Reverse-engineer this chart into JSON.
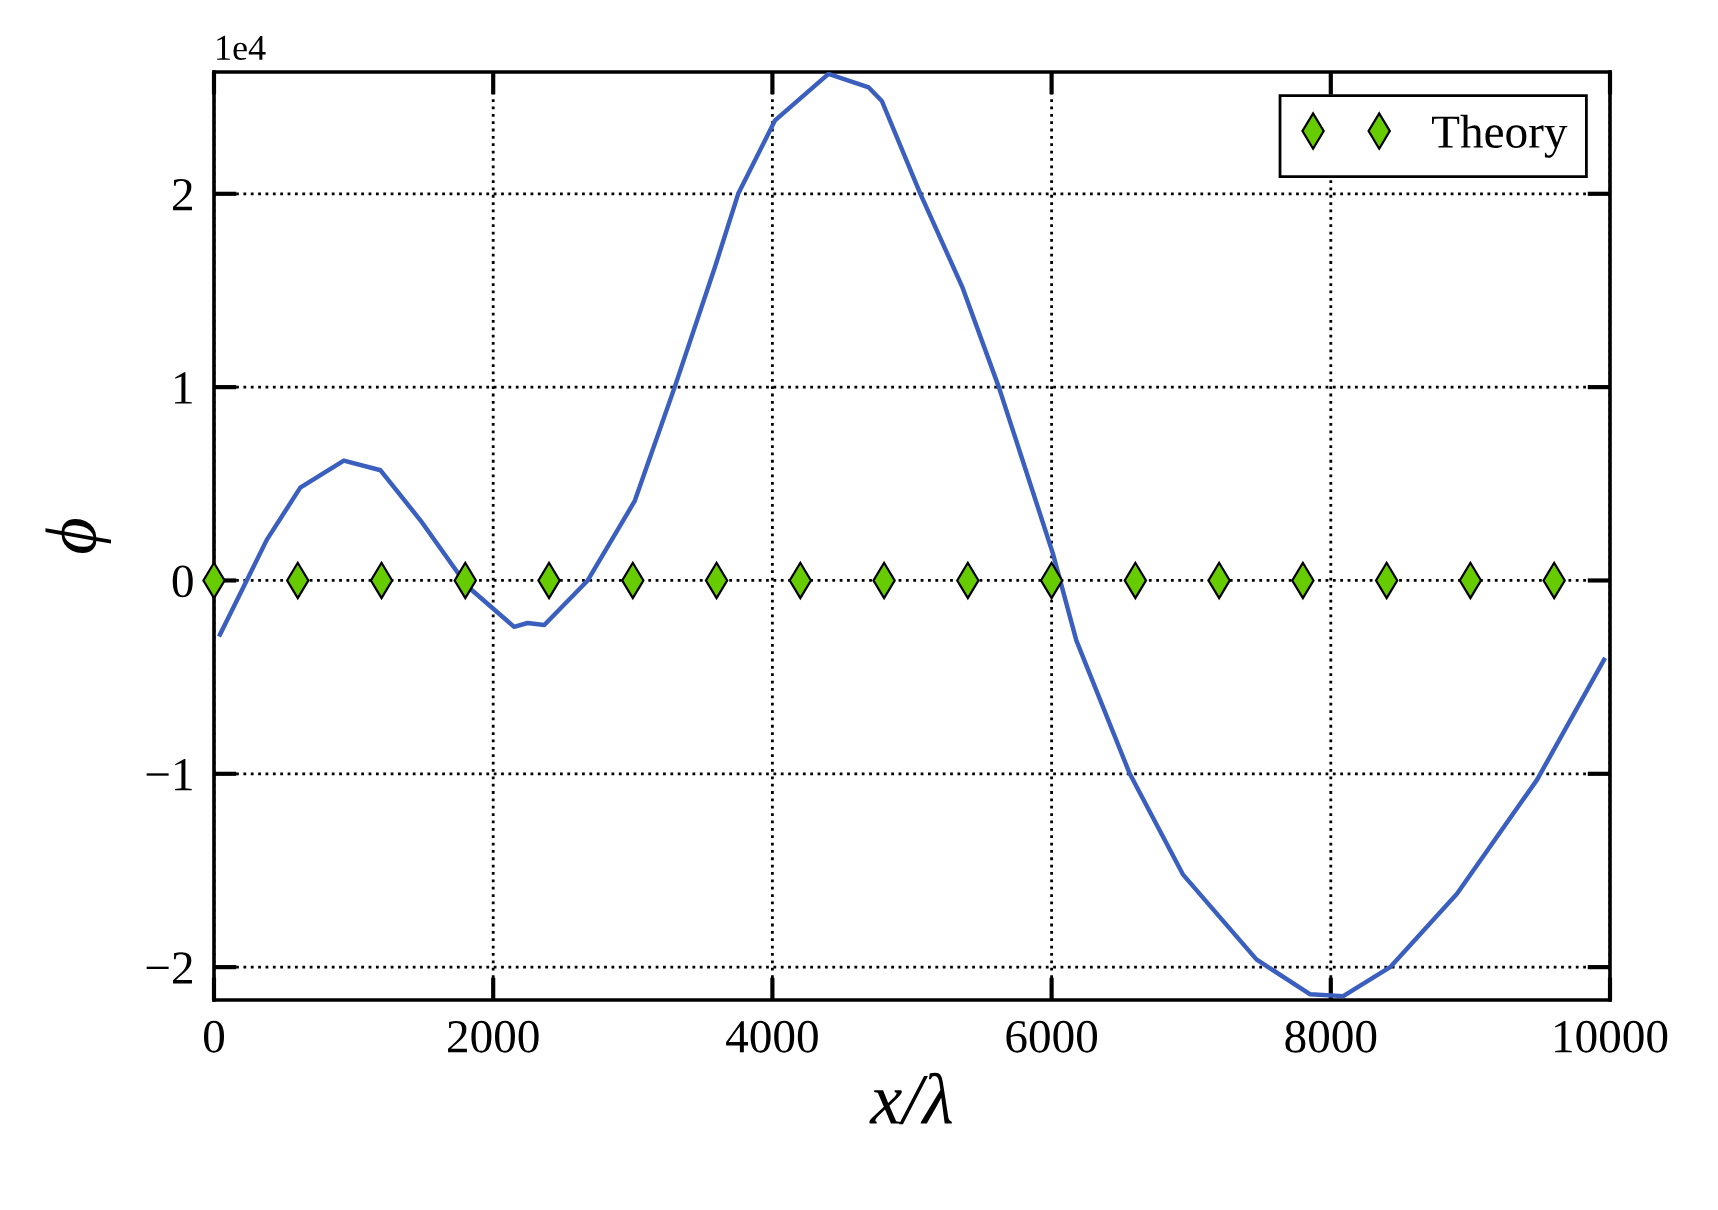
{
  "chart_data": {
    "type": "line",
    "xlabel": "x/λ",
    "ylabel": "ϕ",
    "annotations": [
      "1e4"
    ],
    "xlim": [
      0,
      10000
    ],
    "xticks": [
      0,
      2000,
      4000,
      6000,
      8000,
      10000
    ],
    "ylim": [
      -2.17,
      2.63
    ],
    "yticks": [
      -2,
      -1,
      0,
      1,
      2
    ],
    "grid": true,
    "legend": "top right",
    "series": [
      {
        "color": "#3a5fbf",
        "marker": "none",
        "line_style": "solid",
        "x": [
          43,
          378,
          618,
          930,
          1193,
          1480,
          1815,
          2150,
          2246,
          2366,
          2677,
          3013,
          3300,
          3588,
          3755,
          4019,
          4402,
          4690,
          4784,
          5060,
          5359,
          5622,
          6009,
          6177,
          6560,
          6940,
          7467,
          7850,
          8089,
          8425,
          8904,
          9478,
          9957
        ],
        "values": [
          -0.28,
          0.21,
          0.48,
          0.62,
          0.57,
          0.31,
          -0.03,
          -0.24,
          -0.22,
          -0.23,
          0,
          0.41,
          1.0,
          1.62,
          2.0,
          2.38,
          2.62,
          2.55,
          2.48,
          2.0,
          1.52,
          1.0,
          0.14,
          -0.31,
          -1.0,
          -1.52,
          -1.96,
          -2.14,
          -2.15,
          -2.0,
          -1.62,
          -1.03,
          -0.41
        ]
      },
      {
        "type": "scatter",
        "name": "Theory",
        "color": "#66cc00",
        "marker": "diamond",
        "x": [
          0,
          600,
          1200,
          1800,
          2400,
          3000,
          3600,
          4200,
          4800,
          5400,
          6000,
          6600,
          7200,
          7800,
          8400,
          9000,
          9600
        ],
        "values": [
          0,
          0,
          0,
          0,
          0,
          0,
          0,
          0,
          0,
          0,
          0,
          0,
          0,
          0,
          0,
          0,
          0
        ]
      }
    ]
  }
}
